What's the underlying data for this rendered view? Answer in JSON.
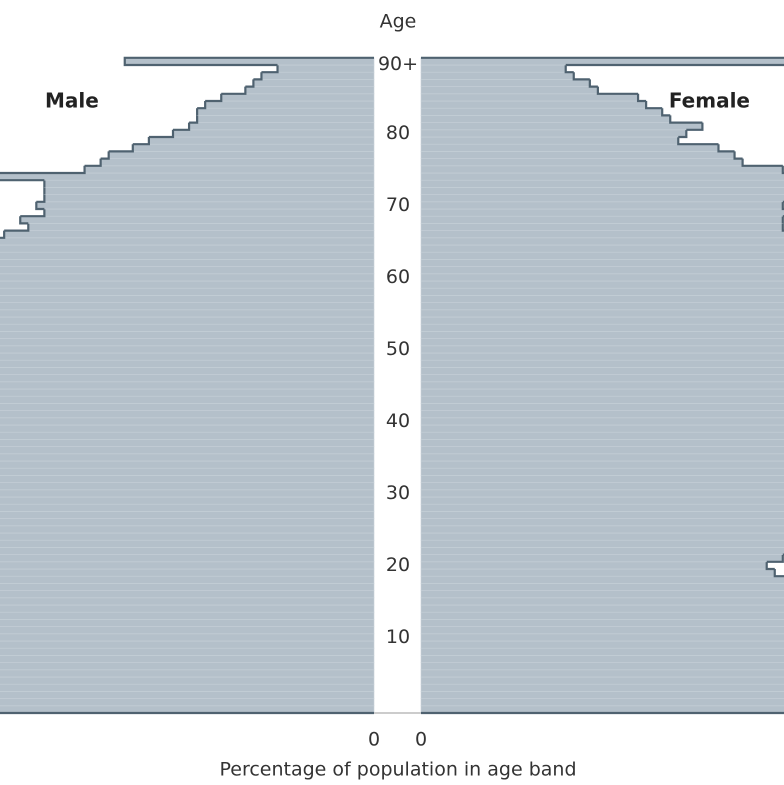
{
  "chart_data": {
    "type": "pyramid",
    "y_axis_title": "Age",
    "x_axis_title": "Percentage of population in age band",
    "categories": [
      null,
      null,
      null,
      null,
      null,
      null,
      null,
      null,
      null,
      null,
      "10",
      null,
      null,
      null,
      null,
      null,
      null,
      null,
      null,
      null,
      "20",
      null,
      null,
      null,
      null,
      null,
      null,
      null,
      null,
      null,
      "30",
      null,
      null,
      null,
      null,
      null,
      null,
      null,
      null,
      null,
      "40",
      null,
      null,
      null,
      null,
      null,
      null,
      null,
      null,
      null,
      "50",
      null,
      null,
      null,
      null,
      null,
      null,
      null,
      null,
      null,
      "60",
      null,
      null,
      null,
      null,
      null,
      null,
      null,
      null,
      null,
      "70",
      null,
      null,
      null,
      null,
      null,
      null,
      null,
      null,
      null,
      "80",
      null,
      null,
      null,
      null,
      null,
      null,
      null,
      null,
      null,
      "90+"
    ],
    "xlim": [
      0,
      0.9
    ],
    "xticks": [
      0,
      0.5
    ],
    "fill": "#b4c0ca",
    "outline": "#4f6270",
    "series": [
      {
        "name": "Male",
        "values": [
          0.64,
          0.7,
          0.72,
          0.73,
          0.71,
          0.68,
          0.72,
          0.66,
          0.67,
          0.66,
          0.65,
          0.64,
          0.63,
          0.62,
          0.6,
          0.59,
          0.58,
          0.57,
          0.56,
          0.49,
          0.48,
          0.52,
          0.54,
          0.56,
          0.62,
          0.65,
          0.66,
          0.64,
          0.65,
          0.67,
          0.68,
          0.69,
          0.68,
          0.69,
          0.67,
          0.7,
          0.69,
          0.7,
          0.74,
          0.73,
          0.71,
          0.68,
          0.61,
          0.6,
          0.59,
          0.6,
          0.58,
          0.57,
          0.62,
          0.61,
          0.61,
          0.61,
          0.63,
          0.64,
          0.62,
          0.65,
          0.64,
          0.63,
          0.61,
          0.62,
          0.61,
          0.59,
          0.58,
          0.51,
          0.5,
          0.49,
          0.46,
          0.43,
          0.44,
          0.41,
          0.42,
          0.41,
          0.41,
          0.41,
          0.5,
          0.36,
          0.34,
          0.33,
          0.3,
          0.28,
          0.25,
          0.23,
          0.22,
          0.22,
          0.21,
          0.19,
          0.16,
          0.15,
          0.14,
          0.12,
          0.31
        ]
      },
      {
        "name": "Female",
        "values": [
          0.57,
          0.6,
          0.62,
          0.64,
          0.68,
          0.69,
          0.66,
          0.67,
          0.66,
          0.6,
          0.59,
          0.59,
          0.59,
          0.59,
          0.6,
          0.58,
          0.56,
          0.55,
          0.52,
          0.44,
          0.43,
          0.45,
          0.5,
          0.53,
          0.57,
          0.6,
          0.63,
          0.66,
          0.68,
          0.75,
          0.72,
          0.72,
          0.78,
          0.79,
          0.77,
          0.78,
          0.76,
          0.7,
          0.76,
          0.73,
          0.71,
          0.67,
          0.64,
          0.68,
          0.61,
          0.6,
          0.6,
          0.6,
          0.63,
          0.65,
          0.69,
          0.68,
          0.7,
          0.69,
          0.73,
          0.72,
          0.7,
          0.69,
          0.62,
          0.67,
          0.65,
          0.61,
          0.59,
          0.57,
          0.5,
          0.47,
          0.47,
          0.45,
          0.45,
          0.46,
          0.45,
          0.46,
          0.48,
          0.52,
          0.58,
          0.45,
          0.4,
          0.39,
          0.37,
          0.32,
          0.33,
          0.35,
          0.31,
          0.3,
          0.28,
          0.27,
          0.22,
          0.21,
          0.19,
          0.18,
          0.79
        ]
      }
    ]
  }
}
